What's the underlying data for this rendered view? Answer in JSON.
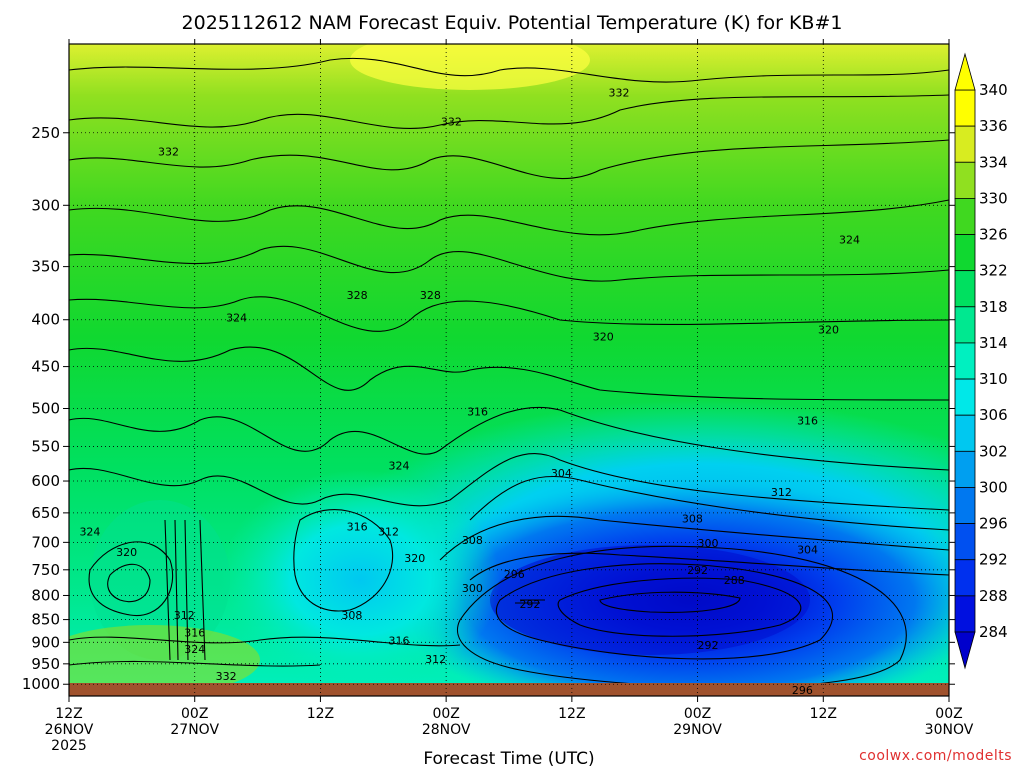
{
  "chart_data": {
    "type": "heatmap",
    "title": "2025112612 NAM Forecast Equiv. Potential Temperature (K) for KB#1",
    "xlabel": "Forecast Time (UTC)",
    "ylabel": "",
    "x_ticks": [
      {
        "hour": 0,
        "lines": [
          "12Z",
          "26NOV",
          "2025"
        ]
      },
      {
        "hour": 12,
        "lines": [
          "00Z",
          "27NOV"
        ]
      },
      {
        "hour": 24,
        "lines": [
          "12Z"
        ]
      },
      {
        "hour": 36,
        "lines": [
          "00Z",
          "28NOV"
        ]
      },
      {
        "hour": 48,
        "lines": [
          "12Z"
        ]
      },
      {
        "hour": 60,
        "lines": [
          "00Z",
          "29NOV"
        ]
      },
      {
        "hour": 72,
        "lines": [
          "12Z"
        ]
      },
      {
        "hour": 84,
        "lines": [
          "00Z",
          "30NOV"
        ]
      }
    ],
    "xlim_hours": [
      0,
      84
    ],
    "y_ticks": [
      250,
      300,
      350,
      400,
      450,
      500,
      550,
      600,
      650,
      700,
      750,
      800,
      850,
      900,
      950,
      1000
    ],
    "ylim_hpa": [
      200,
      1030
    ],
    "y_scale": "log-pressure",
    "colorbar": {
      "levels": [
        284,
        288,
        292,
        296,
        300,
        302,
        306,
        310,
        314,
        318,
        322,
        326,
        330,
        334,
        336,
        340
      ],
      "colors": [
        "#0000cc",
        "#0010e0",
        "#0030ee",
        "#0050f0",
        "#0078f0",
        "#009ff0",
        "#00c8f0",
        "#00e8e8",
        "#00f0c0",
        "#00e890",
        "#00e060",
        "#10d830",
        "#40d820",
        "#90e020",
        "#d8ec20",
        "#ffff00"
      ]
    },
    "contour_labels": [
      {
        "text": "332",
        "hour": 9.5,
        "p": 262
      },
      {
        "text": "332",
        "hour": 36.5,
        "p": 243
      },
      {
        "text": "332",
        "hour": 52.5,
        "p": 226
      },
      {
        "text": "324",
        "hour": 74.5,
        "p": 327
      },
      {
        "text": "328",
        "hour": 27.5,
        "p": 376
      },
      {
        "text": "328",
        "hour": 34.5,
        "p": 376
      },
      {
        "text": "324",
        "hour": 16,
        "p": 398
      },
      {
        "text": "320",
        "hour": 51,
        "p": 417
      },
      {
        "text": "320",
        "hour": 72.5,
        "p": 410
      },
      {
        "text": "316",
        "hour": 39,
        "p": 504
      },
      {
        "text": "316",
        "hour": 70.5,
        "p": 515
      },
      {
        "text": "324",
        "hour": 31.5,
        "p": 577
      },
      {
        "text": "304",
        "hour": 47,
        "p": 588
      },
      {
        "text": "312",
        "hour": 68,
        "p": 617
      },
      {
        "text": "308",
        "hour": 59.5,
        "p": 659
      },
      {
        "text": "324",
        "hour": 2,
        "p": 681
      },
      {
        "text": "316",
        "hour": 27.5,
        "p": 673
      },
      {
        "text": "312",
        "hour": 30.5,
        "p": 681
      },
      {
        "text": "308",
        "hour": 38.5,
        "p": 696
      },
      {
        "text": "300",
        "hour": 61,
        "p": 701
      },
      {
        "text": "304",
        "hour": 70.5,
        "p": 713
      },
      {
        "text": "320",
        "hour": 5.5,
        "p": 717
      },
      {
        "text": "320",
        "hour": 33,
        "p": 728
      },
      {
        "text": "292",
        "hour": 60,
        "p": 750
      },
      {
        "text": "296",
        "hour": 42.5,
        "p": 758
      },
      {
        "text": "288",
        "hour": 63.5,
        "p": 769
      },
      {
        "text": "300",
        "hour": 38.5,
        "p": 785
      },
      {
        "text": "292",
        "hour": 44,
        "p": 817
      },
      {
        "text": "312",
        "hour": 11,
        "p": 840
      },
      {
        "text": "308",
        "hour": 27,
        "p": 840
      },
      {
        "text": "316",
        "hour": 12,
        "p": 878
      },
      {
        "text": "316",
        "hour": 31.5,
        "p": 896
      },
      {
        "text": "292",
        "hour": 61,
        "p": 906
      },
      {
        "text": "324",
        "hour": 12,
        "p": 915
      },
      {
        "text": "312",
        "hour": 35,
        "p": 939
      },
      {
        "text": "332",
        "hour": 15,
        "p": 980
      },
      {
        "text": "296",
        "hour": 70,
        "p": 1015
      }
    ],
    "watermark": "coolwx.com/modelts"
  }
}
